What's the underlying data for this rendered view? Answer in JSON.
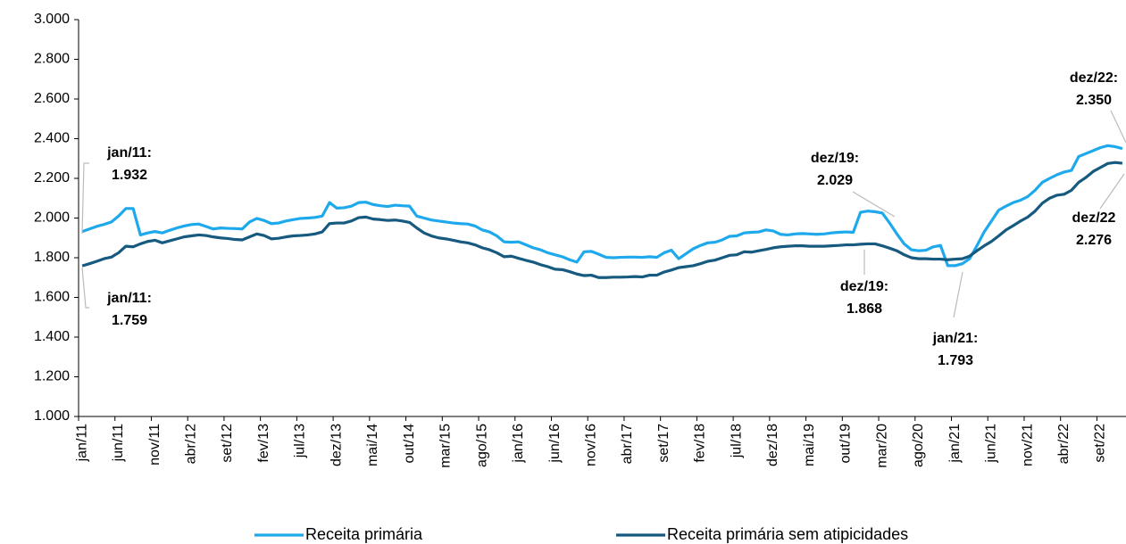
{
  "chart_data": {
    "type": "line",
    "categories": [
      "jan/11",
      null,
      null,
      null,
      null,
      "jun/11",
      null,
      null,
      null,
      null,
      "nov/11",
      null,
      null,
      null,
      null,
      "abr/12",
      null,
      null,
      null,
      null,
      "set/12",
      null,
      null,
      null,
      null,
      "fev/13",
      null,
      null,
      null,
      null,
      "jul/13",
      null,
      null,
      null,
      null,
      "dez/13",
      null,
      null,
      null,
      null,
      "mai/14",
      null,
      null,
      null,
      null,
      "out/14",
      null,
      null,
      null,
      null,
      "mar/15",
      null,
      null,
      null,
      null,
      "ago/15",
      null,
      null,
      null,
      null,
      "jan/16",
      null,
      null,
      null,
      null,
      "jun/16",
      null,
      null,
      null,
      null,
      "nov/16",
      null,
      null,
      null,
      null,
      "abr/17",
      null,
      null,
      null,
      null,
      "set/17",
      null,
      null,
      null,
      null,
      "fev/18",
      null,
      null,
      null,
      null,
      "jul/18",
      null,
      null,
      null,
      null,
      "dez/18",
      null,
      null,
      null,
      null,
      "mai/19",
      null,
      null,
      null,
      null,
      "out/19",
      null,
      null,
      null,
      null,
      "mar/20",
      null,
      null,
      null,
      null,
      "ago/20",
      null,
      null,
      null,
      null,
      "jan/21",
      null,
      null,
      null,
      null,
      "jun/21",
      null,
      null,
      null,
      null,
      "nov/21",
      null,
      null,
      null,
      null,
      "abr/22",
      null,
      null,
      null,
      null,
      "set/22",
      null,
      null,
      null
    ],
    "series": [
      {
        "name": "Receita primária",
        "color": "#1ea9ec",
        "values": [
          1932,
          1945,
          1958,
          1968,
          1980,
          2010,
          2048,
          2048,
          1915,
          1925,
          1932,
          1925,
          1938,
          1950,
          1960,
          1967,
          1970,
          1958,
          1945,
          1950,
          1948,
          1947,
          1945,
          1980,
          1998,
          1988,
          1972,
          1975,
          1985,
          1992,
          1998,
          2000,
          2003,
          2010,
          2078,
          2050,
          2052,
          2060,
          2078,
          2080,
          2068,
          2062,
          2058,
          2065,
          2062,
          2060,
          2010,
          2000,
          1990,
          1985,
          1980,
          1975,
          1972,
          1970,
          1960,
          1940,
          1930,
          1910,
          1880,
          1878,
          1880,
          1865,
          1850,
          1840,
          1825,
          1815,
          1805,
          1790,
          1778,
          1830,
          1832,
          1818,
          1802,
          1800,
          1802,
          1803,
          1803,
          1802,
          1805,
          1802,
          1825,
          1838,
          1795,
          1820,
          1845,
          1862,
          1875,
          1878,
          1890,
          1908,
          1910,
          1925,
          1928,
          1930,
          1940,
          1935,
          1918,
          1915,
          1920,
          1922,
          1920,
          1918,
          1920,
          1925,
          1928,
          1930,
          1928,
          2029,
          2035,
          2032,
          2025,
          1975,
          1920,
          1870,
          1840,
          1835,
          1838,
          1855,
          1862,
          1760,
          1760,
          1770,
          1795,
          1860,
          1930,
          1985,
          2040,
          2060,
          2078,
          2090,
          2108,
          2140,
          2180,
          2200,
          2218,
          2232,
          2240,
          2310,
          2325,
          2340,
          2355,
          2365,
          2360,
          2350
        ]
      },
      {
        "name": "Receita primária sem atipicidades",
        "color": "#175a80",
        "values": [
          1759,
          1770,
          1782,
          1795,
          1803,
          1825,
          1858,
          1855,
          1870,
          1882,
          1888,
          1875,
          1885,
          1895,
          1905,
          1910,
          1915,
          1912,
          1905,
          1900,
          1897,
          1892,
          1890,
          1905,
          1920,
          1912,
          1895,
          1898,
          1905,
          1910,
          1912,
          1915,
          1920,
          1930,
          1972,
          1975,
          1975,
          1985,
          2002,
          2005,
          1995,
          1992,
          1988,
          1990,
          1985,
          1978,
          1950,
          1925,
          1910,
          1900,
          1895,
          1888,
          1880,
          1875,
          1865,
          1850,
          1840,
          1825,
          1805,
          1808,
          1797,
          1787,
          1778,
          1765,
          1755,
          1742,
          1740,
          1730,
          1718,
          1710,
          1712,
          1700,
          1700,
          1702,
          1702,
          1703,
          1705,
          1703,
          1712,
          1712,
          1728,
          1738,
          1750,
          1755,
          1760,
          1770,
          1782,
          1788,
          1800,
          1812,
          1815,
          1830,
          1828,
          1835,
          1842,
          1850,
          1855,
          1858,
          1860,
          1860,
          1858,
          1858,
          1858,
          1860,
          1862,
          1865,
          1865,
          1868,
          1870,
          1870,
          1860,
          1848,
          1835,
          1815,
          1800,
          1795,
          1795,
          1793,
          1793,
          1790,
          1793,
          1795,
          1808,
          1835,
          1860,
          1882,
          1910,
          1940,
          1962,
          1985,
          2005,
          2035,
          2075,
          2100,
          2115,
          2120,
          2140,
          2180,
          2205,
          2235,
          2255,
          2275,
          2280,
          2276
        ]
      }
    ],
    "ylim": [
      1000,
      3000
    ],
    "yticks": [
      {
        "value": 1000,
        "label": "1.000"
      },
      {
        "value": 1200,
        "label": "1.200"
      },
      {
        "value": 1400,
        "label": "1.400"
      },
      {
        "value": 1600,
        "label": "1.600"
      },
      {
        "value": 1800,
        "label": "1.800"
      },
      {
        "value": 2000,
        "label": "2.000"
      },
      {
        "value": 2200,
        "label": "2.200"
      },
      {
        "value": 2400,
        "label": "2.400"
      },
      {
        "value": 2600,
        "label": "2.600"
      },
      {
        "value": 2800,
        "label": "2.800"
      },
      {
        "value": 3000,
        "label": "3.000"
      }
    ],
    "grid": false,
    "annotations": [
      {
        "text": "jan/11:",
        "value_label": "1.932"
      },
      {
        "text": "jan/11:",
        "value_label": "1.759"
      },
      {
        "text": "dez/19:",
        "value_label": "2.029"
      },
      {
        "text": "dez/19:",
        "value_label": "1.868"
      },
      {
        "text": "jan/21:",
        "value_label": "1.793"
      },
      {
        "text": "dez/22:",
        "value_label": "2.350"
      },
      {
        "text": "dez/22",
        "value_label": "2.276"
      }
    ]
  }
}
